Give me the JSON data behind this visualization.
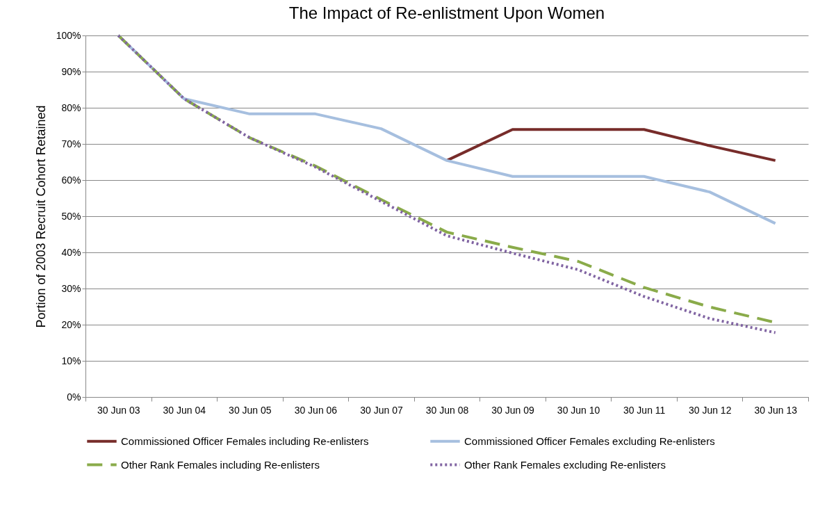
{
  "chart_data": {
    "type": "line",
    "title": "The Impact of Re-enlistment Upon Women",
    "ylabel": "Portion of 2003 Recruit Cohort Retained",
    "categories": [
      "30 Jun 03",
      "30 Jun 04",
      "30 Jun 05",
      "30 Jun 06",
      "30 Jun 07",
      "30 Jun 08",
      "30 Jun 09",
      "30 Jun 10",
      "30 Jun 11",
      "30 Jun 12",
      "30 Jun 13"
    ],
    "series": [
      {
        "name": "Commissioned Officer Females including Re-enlisters",
        "color": "#772c2a",
        "line_style": "solid",
        "values": [
          null,
          null,
          null,
          null,
          null,
          65.4,
          74,
          74,
          74,
          69.5,
          65.4
        ]
      },
      {
        "name": "Commissioned Officer Females excluding Re-enlisters",
        "color": "#a6bfdf",
        "line_style": "solid",
        "values": [
          100,
          82.5,
          78.3,
          78.3,
          74.2,
          65.4,
          61,
          61,
          61,
          56.7,
          48
        ]
      },
      {
        "name": "Other Rank Females including Re-enlisters",
        "color": "#8aab4a",
        "line_style": "dashed",
        "values": [
          100,
          82.5,
          71.7,
          63.9,
          54.6,
          45.6,
          41.4,
          37.5,
          30.3,
          24.9,
          20.6
        ]
      },
      {
        "name": "Other Rank Females excluding Re-enlisters",
        "color": "#8064a2",
        "line_style": "dotted",
        "values": [
          100,
          82.5,
          71.7,
          63.6,
          54.1,
          44.6,
          39.8,
          35.2,
          27.8,
          21.7,
          17.8
        ]
      }
    ],
    "ylim": [
      0,
      100
    ],
    "yticks": [
      {
        "value": 0,
        "label": "0%"
      },
      {
        "value": 10,
        "label": "10%"
      },
      {
        "value": 20,
        "label": "20%"
      },
      {
        "value": 30,
        "label": "30%"
      },
      {
        "value": 40,
        "label": "40%"
      },
      {
        "value": 50,
        "label": "50%"
      },
      {
        "value": 60,
        "label": "60%"
      },
      {
        "value": 70,
        "label": "70%"
      },
      {
        "value": 80,
        "label": "80%"
      },
      {
        "value": 90,
        "label": "90%"
      },
      {
        "value": 100,
        "label": "100%"
      }
    ],
    "grid": "y",
    "legend": "bottom",
    "marker": "none"
  }
}
